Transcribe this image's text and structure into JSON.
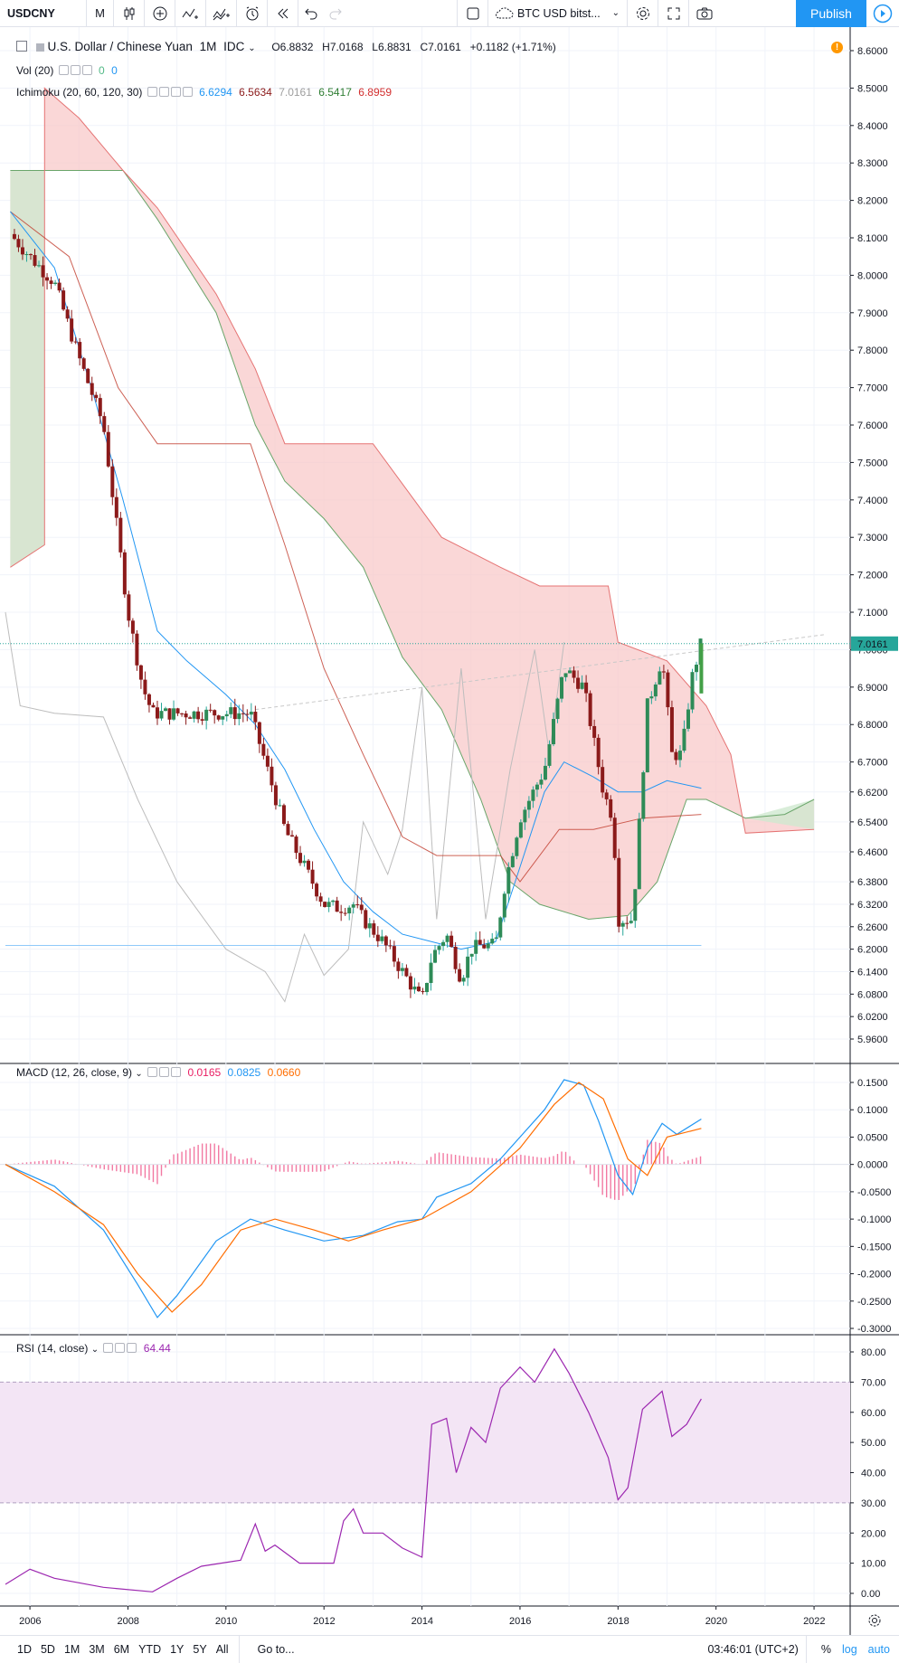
{
  "toolbar": {
    "symbol": "USDCNY",
    "interval": "M",
    "compare_label": "BTC USD bitst...",
    "publish": "Publish"
  },
  "legend": {
    "title": "U.S. Dollar / Chinese Yuan",
    "interval": "1M",
    "exchange": "IDC",
    "o": "O6.8832",
    "h": "H7.0168",
    "l": "L6.8831",
    "c": "C7.0161",
    "change": "+0.1182 (+1.71%)",
    "vol": "Vol (20)",
    "vol_v1": "0",
    "vol_v2": "0",
    "ichimoku": "Ichimoku (20, 60, 120, 30)",
    "ich_v1": "6.6294",
    "ich_v2": "6.5634",
    "ich_v3": "7.0161",
    "ich_v4": "6.5417",
    "ich_v5": "6.8959",
    "macd": "MACD (12, 26, close, 9)",
    "macd_v1": "0.0165",
    "macd_v2": "0.0825",
    "macd_v3": "0.0660",
    "rsi": "RSI (14, close)",
    "rsi_v": "64.44"
  },
  "price_axis": [
    "8.6000",
    "8.5000",
    "8.4000",
    "8.3000",
    "8.2000",
    "8.1000",
    "8.0000",
    "7.9000",
    "7.8000",
    "7.7000",
    "7.6000",
    "7.5000",
    "7.4000",
    "7.3000",
    "7.2000",
    "7.1000",
    "7.0000",
    "6.9000",
    "6.8000",
    "6.7000",
    "6.6200",
    "6.5400",
    "6.4600",
    "6.3800",
    "6.3200",
    "6.2600",
    "6.2000",
    "6.1400",
    "6.0800",
    "6.0200",
    "5.9600"
  ],
  "price_ticks": [
    8.6,
    8.5,
    8.4,
    8.3,
    8.2,
    8.1,
    8.0,
    7.9,
    7.8,
    7.7,
    7.6,
    7.5,
    7.4,
    7.3,
    7.2,
    7.1,
    7.0,
    6.9,
    6.8,
    6.7,
    6.62,
    6.54,
    6.46,
    6.38,
    6.32,
    6.26,
    6.2,
    6.14,
    6.08,
    6.02,
    5.96
  ],
  "current_price": "7.0161",
  "macd_axis": [
    "0.1500",
    "0.1000",
    "0.0500",
    "0.0000",
    "-0.0500",
    "-0.1000",
    "-0.1500",
    "-0.2000",
    "-0.2500",
    "-0.3000"
  ],
  "macd_ticks": [
    0.15,
    0.1,
    0.05,
    0,
    -0.05,
    -0.1,
    -0.15,
    -0.2,
    -0.25,
    -0.3
  ],
  "rsi_axis": [
    "80.00",
    "70.00",
    "60.00",
    "50.00",
    "40.00",
    "30.00",
    "20.00",
    "10.00",
    "0.00"
  ],
  "rsi_ticks": [
    80,
    70,
    60,
    50,
    40,
    30,
    20,
    10,
    0
  ],
  "time_axis": [
    "2006",
    "2008",
    "2010",
    "2012",
    "2014",
    "2016",
    "2018",
    "2020",
    "2022"
  ],
  "bottom": {
    "ranges": [
      "1D",
      "5D",
      "1M",
      "3M",
      "6M",
      "YTD",
      "1Y",
      "5Y",
      "All"
    ],
    "goto": "Go to...",
    "clock": "03:46:01 (UTC+2)",
    "pct": "%",
    "log": "log",
    "auto": "auto"
  },
  "colors": {
    "up": "#53b987",
    "down": "#eb4d5c",
    "candle_up": "#26a69a",
    "candle_down": "#8b1a1a",
    "tenkan": "#2196f3",
    "kijun": "#c0392b",
    "chikou": "#bdbdbd",
    "cloud_red": "#f8c9c9",
    "cloud_green": "#cfe8cf",
    "macd": "#2196f3",
    "signal": "#ff6d00",
    "hist": "#e91e63",
    "rsi": "#9c27b0",
    "rsi_band": "#f3e5f5",
    "publish": "#2196f3"
  },
  "chart_data": {
    "type": "candlestick",
    "x_start": 2005.5,
    "x_end": 2022.7,
    "price_series": [
      [
        2005.6,
        8.11
      ],
      [
        2006.0,
        8.05
      ],
      [
        2006.5,
        7.98
      ],
      [
        2007.0,
        7.78
      ],
      [
        2007.5,
        7.6
      ],
      [
        2008.0,
        7.1
      ],
      [
        2008.3,
        6.9
      ],
      [
        2008.5,
        6.83
      ],
      [
        2009.0,
        6.83
      ],
      [
        2010.0,
        6.83
      ],
      [
        2010.5,
        6.83
      ],
      [
        2010.8,
        6.7
      ],
      [
        2011.2,
        6.52
      ],
      [
        2011.6,
        6.42
      ],
      [
        2012.0,
        6.32
      ],
      [
        2012.3,
        6.31
      ],
      [
        2012.6,
        6.32
      ],
      [
        2012.8,
        6.28
      ],
      [
        2013.2,
        6.22
      ],
      [
        2013.6,
        6.14
      ],
      [
        2014.0,
        6.06
      ],
      [
        2014.2,
        6.18
      ],
      [
        2014.5,
        6.24
      ],
      [
        2014.8,
        6.12
      ],
      [
        2015.0,
        6.2
      ],
      [
        2015.2,
        6.21
      ],
      [
        2015.5,
        6.21
      ],
      [
        2015.7,
        6.38
      ],
      [
        2016.0,
        6.55
      ],
      [
        2016.5,
        6.68
      ],
      [
        2016.9,
        6.95
      ],
      [
        2017.3,
        6.9
      ],
      [
        2017.7,
        6.62
      ],
      [
        2017.9,
        6.55
      ],
      [
        2018.0,
        6.28
      ],
      [
        2018.3,
        6.28
      ],
      [
        2018.6,
        6.85
      ],
      [
        2018.9,
        6.98
      ],
      [
        2019.1,
        6.72
      ],
      [
        2019.3,
        6.72
      ],
      [
        2019.5,
        6.92
      ],
      [
        2019.7,
        7.02
      ]
    ],
    "macd_series": [
      [
        2005.5,
        0.0
      ],
      [
        2006.5,
        -0.04
      ],
      [
        2007.5,
        -0.12
      ],
      [
        2008.2,
        -0.22
      ],
      [
        2008.6,
        -0.28
      ],
      [
        2009.0,
        -0.24
      ],
      [
        2009.8,
        -0.14
      ],
      [
        2010.5,
        -0.1
      ],
      [
        2011.2,
        -0.12
      ],
      [
        2012.0,
        -0.14
      ],
      [
        2012.8,
        -0.13
      ],
      [
        2013.5,
        -0.105
      ],
      [
        2014.0,
        -0.1
      ],
      [
        2014.3,
        -0.06
      ],
      [
        2015.0,
        -0.035
      ],
      [
        2015.6,
        0.01
      ],
      [
        2016.0,
        0.05
      ],
      [
        2016.5,
        0.1
      ],
      [
        2016.9,
        0.155
      ],
      [
        2017.3,
        0.145
      ],
      [
        2017.6,
        0.08
      ],
      [
        2018.0,
        -0.02
      ],
      [
        2018.3,
        -0.055
      ],
      [
        2018.6,
        0.03
      ],
      [
        2018.9,
        0.075
      ],
      [
        2019.2,
        0.055
      ],
      [
        2019.7,
        0.083
      ]
    ],
    "signal_series": [
      [
        2005.5,
        0.0
      ],
      [
        2006.5,
        -0.05
      ],
      [
        2007.5,
        -0.11
      ],
      [
        2008.2,
        -0.2
      ],
      [
        2008.9,
        -0.27
      ],
      [
        2009.5,
        -0.22
      ],
      [
        2010.3,
        -0.12
      ],
      [
        2011.0,
        -0.1
      ],
      [
        2011.8,
        -0.12
      ],
      [
        2012.5,
        -0.14
      ],
      [
        2013.2,
        -0.12
      ],
      [
        2014.0,
        -0.1
      ],
      [
        2015.0,
        -0.05
      ],
      [
        2016.0,
        0.03
      ],
      [
        2016.7,
        0.11
      ],
      [
        2017.2,
        0.15
      ],
      [
        2017.7,
        0.12
      ],
      [
        2018.2,
        0.01
      ],
      [
        2018.6,
        -0.02
      ],
      [
        2019.0,
        0.05
      ],
      [
        2019.7,
        0.066
      ]
    ],
    "rsi_series": [
      [
        2005.5,
        3
      ],
      [
        2006.0,
        8
      ],
      [
        2006.5,
        5
      ],
      [
        2007.5,
        2
      ],
      [
        2008.5,
        0.5
      ],
      [
        2009.0,
        5
      ],
      [
        2009.5,
        9
      ],
      [
        2010.3,
        11
      ],
      [
        2010.6,
        23
      ],
      [
        2010.8,
        14
      ],
      [
        2011.0,
        16
      ],
      [
        2011.5,
        10
      ],
      [
        2012.2,
        10
      ],
      [
        2012.4,
        24
      ],
      [
        2012.6,
        28
      ],
      [
        2012.8,
        20
      ],
      [
        2013.2,
        20
      ],
      [
        2013.6,
        15
      ],
      [
        2014.0,
        12
      ],
      [
        2014.2,
        56
      ],
      [
        2014.5,
        58
      ],
      [
        2014.7,
        40
      ],
      [
        2015.0,
        55
      ],
      [
        2015.3,
        50
      ],
      [
        2015.6,
        68
      ],
      [
        2016.0,
        75
      ],
      [
        2016.3,
        70
      ],
      [
        2016.7,
        81
      ],
      [
        2017.0,
        73
      ],
      [
        2017.4,
        60
      ],
      [
        2017.8,
        45
      ],
      [
        2018.0,
        31
      ],
      [
        2018.2,
        35
      ],
      [
        2018.5,
        61
      ],
      [
        2018.9,
        67
      ],
      [
        2019.1,
        52
      ],
      [
        2019.4,
        56
      ],
      [
        2019.7,
        64.44
      ]
    ],
    "tenkan_series": [
      [
        2005.6,
        8.17
      ],
      [
        2006.5,
        8.02
      ],
      [
        2007.3,
        7.68
      ],
      [
        2007.9,
        7.4
      ],
      [
        2008.6,
        7.05
      ],
      [
        2009.2,
        6.97
      ],
      [
        2010.0,
        6.88
      ],
      [
        2010.6,
        6.8
      ],
      [
        2011.2,
        6.68
      ],
      [
        2011.8,
        6.52
      ],
      [
        2012.4,
        6.38
      ],
      [
        2013.0,
        6.3
      ],
      [
        2013.6,
        6.24
      ],
      [
        2014.2,
        6.22
      ],
      [
        2014.8,
        6.2
      ],
      [
        2015.5,
        6.22
      ],
      [
        2016.0,
        6.42
      ],
      [
        2016.5,
        6.62
      ],
      [
        2016.9,
        6.7
      ],
      [
        2017.5,
        6.66
      ],
      [
        2018.0,
        6.62
      ],
      [
        2018.5,
        6.62
      ],
      [
        2019.0,
        6.65
      ],
      [
        2019.7,
        6.63
      ]
    ],
    "kijun_series": [
      [
        2005.6,
        8.17
      ],
      [
        2006.8,
        8.05
      ],
      [
        2007.8,
        7.7
      ],
      [
        2008.6,
        7.55
      ],
      [
        2010.5,
        7.55
      ],
      [
        2011.2,
        7.28
      ],
      [
        2012.0,
        6.95
      ],
      [
        2012.8,
        6.72
      ],
      [
        2013.6,
        6.5
      ],
      [
        2014.3,
        6.45
      ],
      [
        2015.6,
        6.45
      ],
      [
        2016.0,
        6.38
      ],
      [
        2016.8,
        6.52
      ],
      [
        2017.5,
        6.52
      ],
      [
        2018.5,
        6.55
      ],
      [
        2019.7,
        6.56
      ]
    ],
    "spanA_series": [
      [
        2005.6,
        8.28
      ],
      [
        2007.9,
        8.28
      ],
      [
        2008.6,
        8.15
      ],
      [
        2009.8,
        7.9
      ],
      [
        2010.6,
        7.6
      ],
      [
        2011.2,
        7.45
      ],
      [
        2012.0,
        7.35
      ],
      [
        2012.8,
        7.22
      ],
      [
        2013.6,
        6.98
      ],
      [
        2014.4,
        6.84
      ],
      [
        2015.2,
        6.6
      ],
      [
        2015.8,
        6.38
      ],
      [
        2016.4,
        6.32
      ],
      [
        2017.4,
        6.28
      ],
      [
        2018.2,
        6.29
      ],
      [
        2018.8,
        6.38
      ],
      [
        2019.4,
        6.6
      ],
      [
        2019.8,
        6.6
      ],
      [
        2020.6,
        6.55
      ],
      [
        2021.4,
        6.56
      ],
      [
        2022.0,
        6.6
      ]
    ],
    "spanB_series": [
      [
        2005.6,
        7.22
      ],
      [
        2006.3,
        7.28
      ],
      [
        2006.3,
        8.5
      ],
      [
        2007.0,
        8.42
      ],
      [
        2007.9,
        8.28
      ],
      [
        2008.6,
        8.18
      ],
      [
        2009.8,
        7.95
      ],
      [
        2010.6,
        7.75
      ],
      [
        2011.2,
        7.55
      ],
      [
        2013.0,
        7.55
      ],
      [
        2014.4,
        7.3
      ],
      [
        2015.6,
        7.22
      ],
      [
        2016.4,
        7.17
      ],
      [
        2017.8,
        7.17
      ],
      [
        2018.0,
        7.02
      ],
      [
        2019.0,
        6.97
      ],
      [
        2019.8,
        6.85
      ],
      [
        2020.3,
        6.72
      ],
      [
        2020.6,
        6.51
      ],
      [
        2022.0,
        6.52
      ]
    ],
    "chikou_series": [
      [
        2005.5,
        7.1
      ],
      [
        2005.8,
        6.85
      ],
      [
        2006.5,
        6.83
      ],
      [
        2007.5,
        6.82
      ],
      [
        2008.2,
        6.6
      ],
      [
        2009.0,
        6.38
      ],
      [
        2010.0,
        6.2
      ],
      [
        2010.8,
        6.14
      ],
      [
        2011.2,
        6.06
      ],
      [
        2011.6,
        6.24
      ],
      [
        2012.0,
        6.13
      ],
      [
        2012.5,
        6.2
      ],
      [
        2012.8,
        6.54
      ],
      [
        2013.3,
        6.4
      ],
      [
        2013.6,
        6.52
      ],
      [
        2014.0,
        6.9
      ],
      [
        2014.3,
        6.28
      ],
      [
        2014.8,
        6.95
      ],
      [
        2015.3,
        6.28
      ],
      [
        2015.8,
        6.68
      ],
      [
        2016.3,
        7.0
      ],
      [
        2016.6,
        6.72
      ],
      [
        2016.9,
        7.02
      ]
    ]
  }
}
